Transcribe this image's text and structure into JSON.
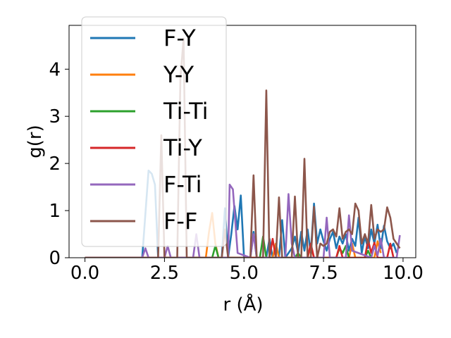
{
  "chart_data": {
    "type": "line",
    "title": "",
    "xlabel": "r (Å)",
    "ylabel": "g(r)",
    "xlim": [
      -0.5,
      10.4
    ],
    "ylim": [
      0,
      4.93
    ],
    "xticks": [
      0.0,
      2.5,
      5.0,
      7.5,
      10.0
    ],
    "xtick_labels": [
      "0.0",
      "2.5",
      "5.0",
      "7.5",
      "10.0"
    ],
    "yticks": [
      0,
      1,
      2,
      3,
      4
    ],
    "ytick_labels": [
      "0",
      "1",
      "2",
      "3",
      "4"
    ],
    "grid": false,
    "legend_position": "upper-left",
    "series": [
      {
        "name": "F-Y",
        "color": "#1f77b4",
        "points": [
          [
            0,
            0
          ],
          [
            1.8,
            0
          ],
          [
            2.0,
            1.85
          ],
          [
            2.1,
            1.78
          ],
          [
            2.2,
            1.55
          ],
          [
            2.3,
            0
          ],
          [
            4.3,
            0
          ],
          [
            4.4,
            1.05
          ],
          [
            4.5,
            0
          ],
          [
            4.6,
            0.5
          ],
          [
            4.7,
            1.1
          ],
          [
            4.8,
            0.6
          ],
          [
            4.9,
            1.32
          ],
          [
            5.0,
            0
          ],
          [
            5.2,
            0
          ],
          [
            5.3,
            0.55
          ],
          [
            5.4,
            0
          ],
          [
            5.7,
            0
          ],
          [
            5.8,
            0.4
          ],
          [
            5.9,
            0
          ],
          [
            6.1,
            0
          ],
          [
            6.2,
            0.8
          ],
          [
            6.3,
            0
          ],
          [
            6.5,
            0.2
          ],
          [
            6.6,
            0.45
          ],
          [
            6.7,
            0.1
          ],
          [
            6.8,
            0.55
          ],
          [
            6.9,
            0.15
          ],
          [
            7.0,
            0.6
          ],
          [
            7.1,
            0.1
          ],
          [
            7.2,
            1.15
          ],
          [
            7.3,
            0.3
          ],
          [
            7.4,
            0.6
          ],
          [
            7.5,
            0.35
          ],
          [
            7.6,
            0.15
          ],
          [
            7.7,
            0.4
          ],
          [
            7.8,
            0.55
          ],
          [
            7.9,
            0.2
          ],
          [
            8.0,
            0.45
          ],
          [
            8.1,
            0.3
          ],
          [
            8.2,
            0.5
          ],
          [
            8.3,
            0.15
          ],
          [
            8.4,
            0.4
          ],
          [
            8.5,
            0.25
          ],
          [
            8.6,
            0.85
          ],
          [
            8.7,
            0.1
          ],
          [
            8.8,
            0.45
          ],
          [
            8.9,
            0.2
          ],
          [
            9.0,
            0.6
          ],
          [
            9.1,
            0.3
          ],
          [
            9.2,
            0.7
          ],
          [
            9.3,
            0.2
          ],
          [
            9.4,
            0.68
          ],
          [
            9.5,
            0.35
          ],
          [
            9.6,
            0.2
          ],
          [
            9.7,
            0.3
          ],
          [
            9.8,
            0.1
          ]
        ]
      },
      {
        "name": "Y-Y",
        "color": "#ff7f0e",
        "points": [
          [
            0,
            0
          ],
          [
            3.8,
            0
          ],
          [
            3.9,
            0.55
          ],
          [
            4.0,
            0.95
          ],
          [
            4.1,
            0.3
          ],
          [
            4.2,
            0
          ],
          [
            5.9,
            0
          ],
          [
            6.0,
            0.3
          ],
          [
            6.1,
            0
          ],
          [
            7.0,
            0
          ],
          [
            7.1,
            0.25
          ],
          [
            7.2,
            0
          ],
          [
            8.3,
            0
          ],
          [
            8.4,
            0.3
          ],
          [
            8.5,
            0
          ],
          [
            9.1,
            0
          ],
          [
            9.2,
            0.35
          ],
          [
            9.3,
            0.1
          ]
        ]
      },
      {
        "name": "Ti-Ti",
        "color": "#2ca02c",
        "points": [
          [
            0,
            0
          ],
          [
            4.0,
            0
          ],
          [
            4.1,
            0.25
          ],
          [
            4.2,
            0
          ],
          [
            5.5,
            0
          ],
          [
            5.6,
            0.45
          ],
          [
            5.7,
            0
          ],
          [
            6.6,
            0
          ],
          [
            6.7,
            0.1
          ],
          [
            6.8,
            0
          ],
          [
            7.9,
            0
          ],
          [
            8.0,
            0.2
          ],
          [
            8.1,
            0.1
          ],
          [
            8.2,
            0.25
          ],
          [
            8.3,
            0
          ],
          [
            8.8,
            0
          ],
          [
            8.9,
            0.15
          ],
          [
            9.0,
            0
          ]
        ]
      },
      {
        "name": "Ti-Y",
        "color": "#d62728",
        "points": [
          [
            0,
            0
          ],
          [
            5.8,
            0
          ],
          [
            5.9,
            0.4
          ],
          [
            6.0,
            0
          ],
          [
            7.0,
            0
          ],
          [
            7.1,
            0.3
          ],
          [
            7.2,
            0
          ],
          [
            7.9,
            0
          ],
          [
            8.0,
            0.25
          ],
          [
            8.1,
            0
          ],
          [
            8.8,
            0
          ],
          [
            8.9,
            0.38
          ],
          [
            9.0,
            0.1
          ],
          [
            9.1,
            0.32
          ],
          [
            9.2,
            0
          ],
          [
            9.5,
            0
          ],
          [
            9.6,
            0.3
          ],
          [
            9.7,
            0
          ]
        ]
      },
      {
        "name": "F-Ti",
        "color": "#9467bd",
        "points": [
          [
            0,
            0
          ],
          [
            1.8,
            0
          ],
          [
            1.9,
            0.2
          ],
          [
            2.0,
            0
          ],
          [
            2.5,
            0
          ],
          [
            2.6,
            0.25
          ],
          [
            2.7,
            0
          ],
          [
            3.4,
            0
          ],
          [
            3.5,
            0.5
          ],
          [
            3.6,
            0
          ],
          [
            4.5,
            0
          ],
          [
            4.55,
            1.55
          ],
          [
            4.65,
            1.45
          ],
          [
            4.8,
            0.1
          ],
          [
            5.2,
            0
          ],
          [
            5.3,
            0.5
          ],
          [
            5.4,
            0
          ],
          [
            6.3,
            0
          ],
          [
            6.4,
            1.35
          ],
          [
            6.5,
            0.3
          ],
          [
            6.6,
            0
          ],
          [
            7.5,
            0
          ],
          [
            7.6,
            0.85
          ],
          [
            7.7,
            0
          ],
          [
            8.2,
            0
          ],
          [
            8.3,
            0.9
          ],
          [
            8.4,
            0.15
          ],
          [
            9.0,
            0
          ],
          [
            9.1,
            0.25
          ],
          [
            9.2,
            0.05
          ],
          [
            9.3,
            0.4
          ],
          [
            9.4,
            0
          ],
          [
            9.8,
            0
          ],
          [
            9.9,
            0.48
          ]
        ]
      },
      {
        "name": "F-F",
        "color": "#8c564b",
        "points": [
          [
            0,
            0
          ],
          [
            2.3,
            0
          ],
          [
            2.4,
            2.6
          ],
          [
            2.5,
            0
          ],
          [
            2.9,
            0
          ],
          [
            3.0,
            3.8
          ],
          [
            3.1,
            4.65
          ],
          [
            3.2,
            0
          ],
          [
            4.3,
            0
          ],
          [
            4.4,
            0.6
          ],
          [
            4.5,
            0
          ],
          [
            5.2,
            0
          ],
          [
            5.3,
            1.75
          ],
          [
            5.4,
            0
          ],
          [
            5.6,
            0
          ],
          [
            5.7,
            3.55
          ],
          [
            5.8,
            0
          ],
          [
            6.0,
            0
          ],
          [
            6.1,
            1.28
          ],
          [
            6.2,
            0
          ],
          [
            6.5,
            0
          ],
          [
            6.6,
            1.3
          ],
          [
            6.7,
            0
          ],
          [
            6.8,
            0
          ],
          [
            6.9,
            2.1
          ],
          [
            7.0,
            0
          ],
          [
            7.1,
            0
          ],
          [
            7.2,
            1.08
          ],
          [
            7.3,
            0
          ],
          [
            7.4,
            0.3
          ],
          [
            7.5,
            0.25
          ],
          [
            7.6,
            0.3
          ],
          [
            7.7,
            0.55
          ],
          [
            7.8,
            0.6
          ],
          [
            7.9,
            0.45
          ],
          [
            8.0,
            1.05
          ],
          [
            8.1,
            0.4
          ],
          [
            8.2,
            0.55
          ],
          [
            8.3,
            0.6
          ],
          [
            8.4,
            0.5
          ],
          [
            8.5,
            1.15
          ],
          [
            8.6,
            1.0
          ],
          [
            8.7,
            0.3
          ],
          [
            8.8,
            0.5
          ],
          [
            8.9,
            0.3
          ],
          [
            9.0,
            1.12
          ],
          [
            9.1,
            0.4
          ],
          [
            9.2,
            0.6
          ],
          [
            9.3,
            0.55
          ],
          [
            9.4,
            0.6
          ],
          [
            9.5,
            1.07
          ],
          [
            9.6,
            0.85
          ],
          [
            9.7,
            0.4
          ],
          [
            9.8,
            0.3
          ],
          [
            9.9,
            0.2
          ]
        ]
      }
    ]
  }
}
